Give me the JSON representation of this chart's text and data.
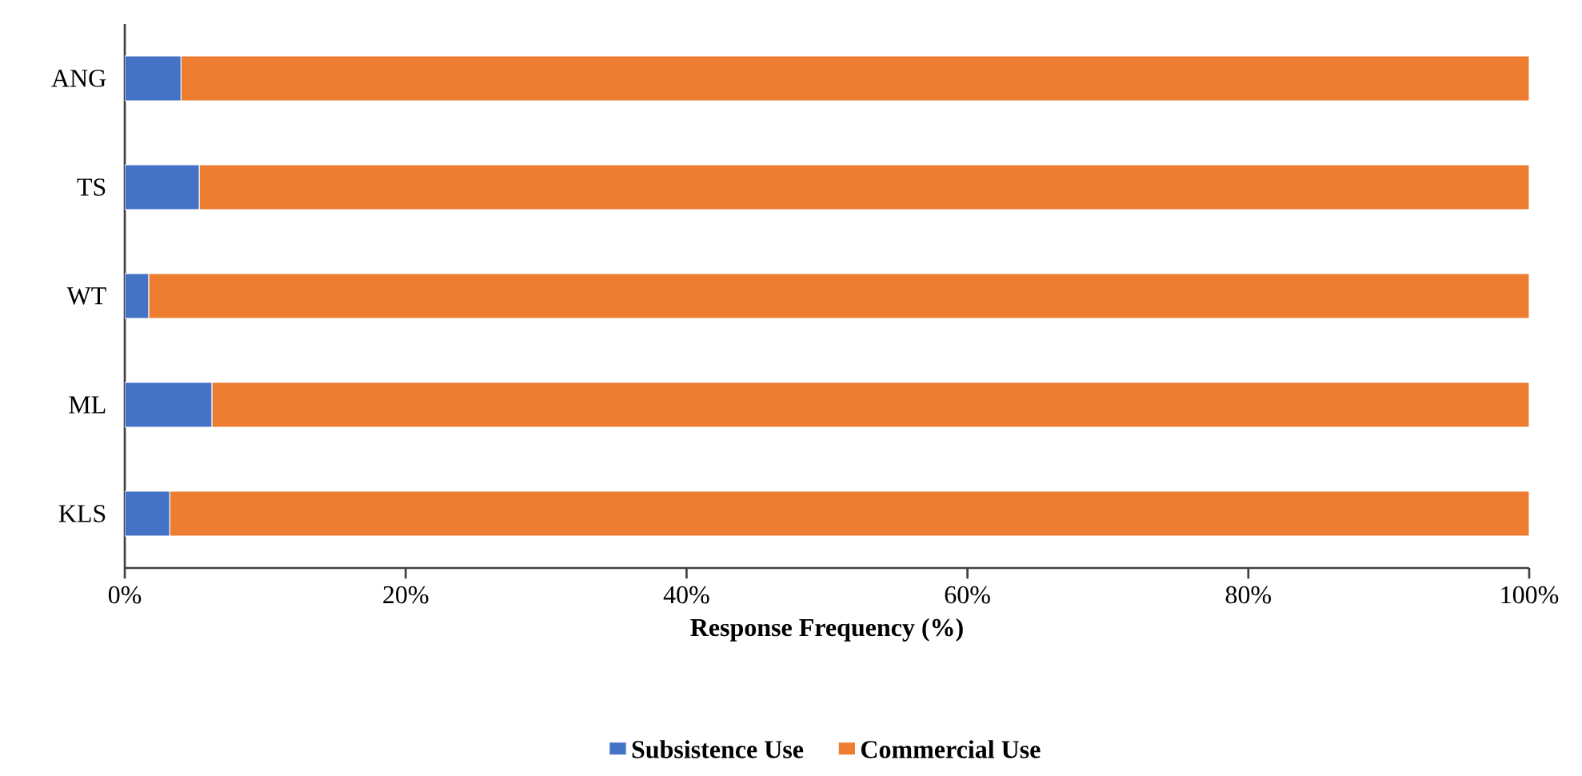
{
  "chart_data": {
    "type": "bar",
    "orientation": "horizontal",
    "stacked": true,
    "xlabel": "Response Frequency (%)",
    "categories": [
      "ANG",
      "TS",
      "WT",
      "ML",
      "KLS"
    ],
    "series": [
      {
        "name": "Subsistence Use",
        "color": "#4472c4",
        "values": [
          4.0,
          5.3,
          1.7,
          6.2,
          3.2
        ]
      },
      {
        "name": "Commercial Use",
        "color": "#ed7d31",
        "values": [
          96.0,
          94.7,
          98.3,
          93.8,
          96.8
        ]
      }
    ],
    "xlim": [
      0,
      100
    ],
    "xticks": [
      {
        "value": 0,
        "label": "0%"
      },
      {
        "value": 20,
        "label": "20%"
      },
      {
        "value": 40,
        "label": "40%"
      },
      {
        "value": 60,
        "label": "60%"
      },
      {
        "value": 80,
        "label": "80%"
      },
      {
        "value": 100,
        "label": "100%"
      }
    ],
    "grid": false,
    "legend": "bottom"
  }
}
